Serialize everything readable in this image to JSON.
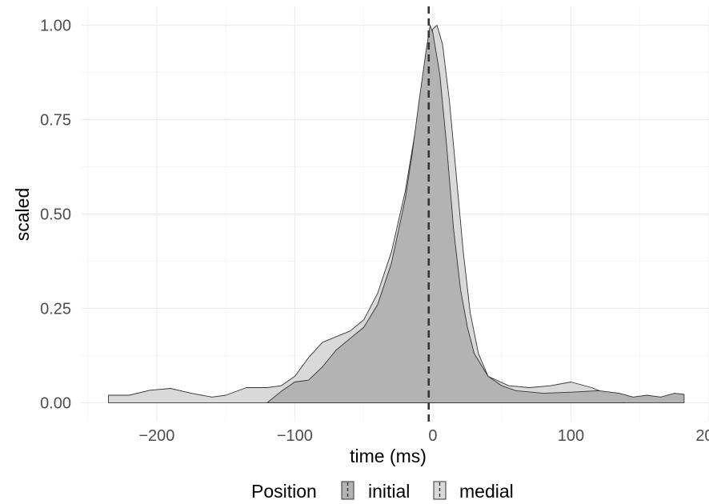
{
  "chart_data": {
    "type": "area",
    "title": "",
    "xlabel": "time (ms)",
    "ylabel": "scaled",
    "xlim": [
      -255,
      200
    ],
    "ylim": [
      -0.05,
      1.05
    ],
    "x_ticks": [
      -200,
      -100,
      0,
      100,
      200
    ],
    "x_tick_labels": [
      "−200",
      "−100",
      "0",
      "100",
      "200"
    ],
    "y_ticks": [
      0,
      0.25,
      0.5,
      0.75,
      1
    ],
    "y_tick_labels": [
      "0.00",
      "0.25",
      "0.50",
      "0.75",
      "1.00"
    ],
    "grid": true,
    "vline": {
      "x": -3,
      "style": "dashed"
    },
    "legend": {
      "title": "Position",
      "position": "bottom"
    },
    "series": [
      {
        "name": "initial",
        "fill": "#b3b3b3",
        "points": [
          [
            -120,
            0
          ],
          [
            -110,
            0.03
          ],
          [
            -100,
            0.055
          ],
          [
            -90,
            0.06
          ],
          [
            -80,
            0.095
          ],
          [
            -70,
            0.14
          ],
          [
            -60,
            0.17
          ],
          [
            -50,
            0.2
          ],
          [
            -40,
            0.26
          ],
          [
            -30,
            0.37
          ],
          [
            -20,
            0.54
          ],
          [
            -15,
            0.66
          ],
          [
            -10,
            0.8
          ],
          [
            -5,
            0.93
          ],
          [
            -2,
            1.0
          ],
          [
            0,
            0.98
          ],
          [
            5,
            0.87
          ],
          [
            10,
            0.68
          ],
          [
            15,
            0.46
          ],
          [
            20,
            0.3
          ],
          [
            25,
            0.2
          ],
          [
            30,
            0.13
          ],
          [
            40,
            0.07
          ],
          [
            50,
            0.045
          ],
          [
            60,
            0.032
          ],
          [
            80,
            0.025
          ],
          [
            100,
            0.028
          ],
          [
            110,
            0.03
          ],
          [
            120,
            0.032
          ],
          [
            135,
            0.025
          ],
          [
            145,
            0.015
          ],
          [
            155,
            0.02
          ],
          [
            165,
            0.015
          ],
          [
            175,
            0.025
          ],
          [
            182,
            0.022
          ],
          [
            182,
            0
          ]
        ]
      },
      {
        "name": "medial",
        "fill": "#d9d9d9",
        "points": [
          [
            -235,
            0
          ],
          [
            -235,
            0.02
          ],
          [
            -220,
            0.02
          ],
          [
            -205,
            0.033
          ],
          [
            -190,
            0.038
          ],
          [
            -175,
            0.025
          ],
          [
            -160,
            0.015
          ],
          [
            -150,
            0.02
          ],
          [
            -135,
            0.04
          ],
          [
            -120,
            0.04
          ],
          [
            -110,
            0.045
          ],
          [
            -100,
            0.07
          ],
          [
            -90,
            0.12
          ],
          [
            -80,
            0.16
          ],
          [
            -70,
            0.175
          ],
          [
            -60,
            0.19
          ],
          [
            -50,
            0.22
          ],
          [
            -40,
            0.29
          ],
          [
            -30,
            0.4
          ],
          [
            -20,
            0.56
          ],
          [
            -10,
            0.78
          ],
          [
            -5,
            0.9
          ],
          [
            0,
            0.99
          ],
          [
            3,
            1.0
          ],
          [
            7,
            0.95
          ],
          [
            12,
            0.8
          ],
          [
            17,
            0.6
          ],
          [
            22,
            0.4
          ],
          [
            27,
            0.24
          ],
          [
            33,
            0.13
          ],
          [
            40,
            0.07
          ],
          [
            55,
            0.045
          ],
          [
            70,
            0.04
          ],
          [
            85,
            0.045
          ],
          [
            100,
            0.055
          ],
          [
            115,
            0.04
          ],
          [
            125,
            0.025
          ],
          [
            135,
            0.015
          ],
          [
            140,
            0.01
          ],
          [
            140,
            0
          ]
        ]
      }
    ]
  }
}
